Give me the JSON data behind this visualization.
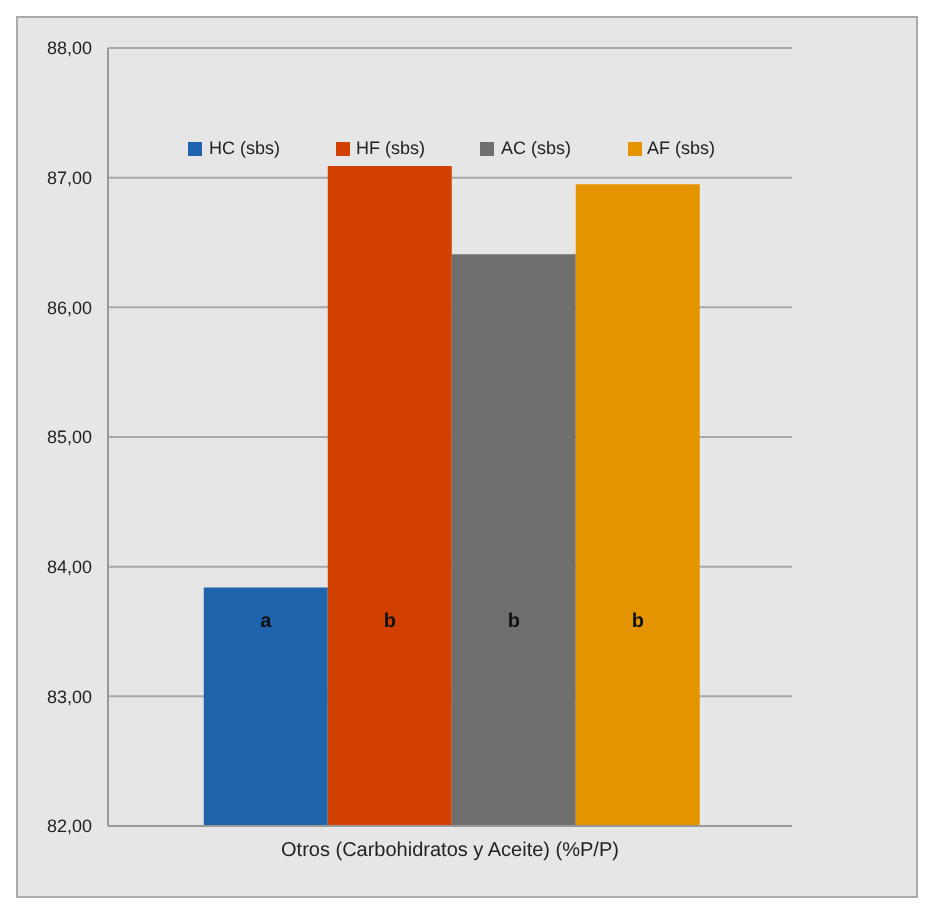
{
  "chart_data": {
    "type": "bar",
    "categories": [
      "Otros (Carbohidratos y Aceite) (%P/P)"
    ],
    "series": [
      {
        "name": "HC (sbs)",
        "color": "#1f63ad",
        "values": [
          83.84
        ]
      },
      {
        "name": "HF (sbs)",
        "color": "#d24000",
        "values": [
          87.09
        ]
      },
      {
        "name": "AC (sbs)",
        "color": "#6f6f6f",
        "values": [
          86.41
        ]
      },
      {
        "name": "AF (sbs)",
        "color": "#e39400",
        "values": [
          86.95
        ]
      }
    ],
    "ylim": [
      82,
      88
    ],
    "yticks": [
      {
        "value": 82,
        "label": "82,00"
      },
      {
        "value": 83,
        "label": "83,00"
      },
      {
        "value": 84,
        "label": "84,00"
      },
      {
        "value": 85,
        "label": "85,00"
      },
      {
        "value": 86,
        "label": "86,00"
      },
      {
        "value": 87,
        "label": "87,00"
      },
      {
        "value": 88,
        "label": "88,00"
      }
    ],
    "grid": "y",
    "legend": "top",
    "annotations": [
      "a",
      "b",
      "b",
      "b"
    ]
  }
}
